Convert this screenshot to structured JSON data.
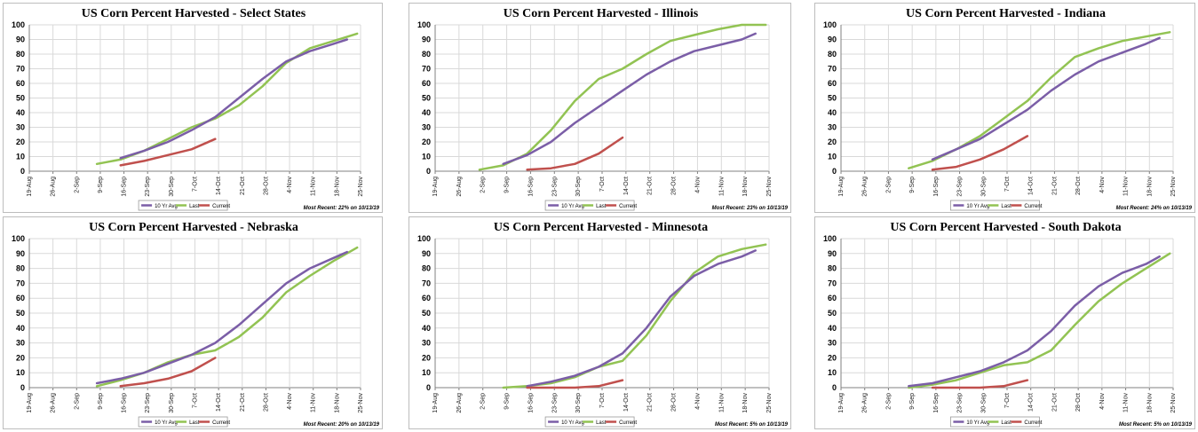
{
  "colors": {
    "avg": "#7b5ea7",
    "last": "#92c353",
    "current": "#c0504d",
    "grid": "#d9d9d9",
    "axis": "#808080"
  },
  "x_ticks": [
    "19-Aug",
    "26-Aug",
    "2-Sep",
    "9-Sep",
    "16-Sep",
    "23-Sep",
    "30-Sep",
    "7-Oct",
    "14-Oct",
    "21-Oct",
    "28-Oct",
    "4-Nov",
    "11-Nov",
    "18-Nov",
    "25-Nov"
  ],
  "y_ticks": [
    "0",
    "10",
    "20",
    "30",
    "40",
    "50",
    "60",
    "70",
    "80",
    "90",
    "100"
  ],
  "legend": {
    "avg": "10 Yr Avg",
    "last": "Last",
    "current": "Current"
  },
  "chart_data": [
    {
      "type": "line",
      "title": "US Corn Percent Harvested - Select States",
      "note": "Most Recent: 22% on 10/13/19",
      "ylim": [
        0,
        100
      ],
      "series": [
        {
          "name": "10 Yr Avg",
          "x": [
            "2019-09-15",
            "2019-09-22",
            "2019-09-29",
            "2019-10-06",
            "2019-10-13",
            "2019-10-20",
            "2019-10-27",
            "2019-11-03",
            "2019-11-10",
            "2019-11-17",
            "2019-11-21"
          ],
          "y": [
            9,
            14,
            20,
            28,
            37,
            50,
            63,
            75,
            82,
            87,
            90
          ]
        },
        {
          "name": "Last",
          "x": [
            "2019-09-08",
            "2019-09-15",
            "2019-09-22",
            "2019-09-29",
            "2019-10-06",
            "2019-10-13",
            "2019-10-20",
            "2019-10-27",
            "2019-11-03",
            "2019-11-10",
            "2019-11-17",
            "2019-11-24"
          ],
          "y": [
            5,
            8,
            14,
            22,
            30,
            36,
            45,
            58,
            74,
            84,
            89,
            94
          ]
        },
        {
          "name": "Current",
          "x": [
            "2019-09-15",
            "2019-09-22",
            "2019-09-29",
            "2019-10-06",
            "2019-10-13"
          ],
          "y": [
            4,
            7,
            11,
            15,
            22
          ]
        }
      ]
    },
    {
      "type": "line",
      "title": "US Corn Percent Harvested - Illinois",
      "note": "Most Recent: 23% on 10/13/19",
      "ylim": [
        0,
        100
      ],
      "series": [
        {
          "name": "10 Yr Avg",
          "x": [
            "2019-09-08",
            "2019-09-15",
            "2019-09-22",
            "2019-09-29",
            "2019-10-06",
            "2019-10-13",
            "2019-10-20",
            "2019-10-27",
            "2019-11-03",
            "2019-11-10",
            "2019-11-17",
            "2019-11-21"
          ],
          "y": [
            5,
            11,
            20,
            33,
            44,
            55,
            66,
            75,
            82,
            86,
            90,
            94
          ]
        },
        {
          "name": "Last",
          "x": [
            "2019-09-01",
            "2019-09-08",
            "2019-09-15",
            "2019-09-22",
            "2019-09-29",
            "2019-10-06",
            "2019-10-13",
            "2019-10-20",
            "2019-10-27",
            "2019-11-03",
            "2019-11-10",
            "2019-11-17",
            "2019-11-24"
          ],
          "y": [
            1,
            4,
            12,
            28,
            48,
            63,
            70,
            80,
            89,
            93,
            97,
            100,
            100
          ]
        },
        {
          "name": "Current",
          "x": [
            "2019-09-15",
            "2019-09-22",
            "2019-09-29",
            "2019-10-06",
            "2019-10-13"
          ],
          "y": [
            1,
            2,
            5,
            12,
            23
          ]
        }
      ]
    },
    {
      "type": "line",
      "title": "US Corn Percent Harvested - Indiana",
      "note": "Most Recent: 24% on 10/13/19",
      "ylim": [
        0,
        100
      ],
      "series": [
        {
          "name": "10 Yr Avg",
          "x": [
            "2019-09-15",
            "2019-09-22",
            "2019-09-29",
            "2019-10-06",
            "2019-10-13",
            "2019-10-20",
            "2019-10-27",
            "2019-11-03",
            "2019-11-10",
            "2019-11-17",
            "2019-11-21"
          ],
          "y": [
            8,
            15,
            22,
            32,
            42,
            55,
            66,
            75,
            81,
            87,
            91
          ]
        },
        {
          "name": "Last",
          "x": [
            "2019-09-08",
            "2019-09-15",
            "2019-09-22",
            "2019-09-29",
            "2019-10-06",
            "2019-10-13",
            "2019-10-20",
            "2019-10-27",
            "2019-11-03",
            "2019-11-10",
            "2019-11-17",
            "2019-11-24"
          ],
          "y": [
            2,
            7,
            15,
            24,
            36,
            48,
            64,
            78,
            84,
            89,
            92,
            95
          ]
        },
        {
          "name": "Current",
          "x": [
            "2019-09-15",
            "2019-09-22",
            "2019-09-29",
            "2019-10-06",
            "2019-10-13"
          ],
          "y": [
            1,
            3,
            8,
            15,
            24
          ]
        }
      ]
    },
    {
      "type": "line",
      "title": "US Corn Percent Harvested - Nebraska",
      "note": "Most Recent: 20% on 10/13/19",
      "ylim": [
        0,
        100
      ],
      "series": [
        {
          "name": "10 Yr Avg",
          "x": [
            "2019-09-08",
            "2019-09-15",
            "2019-09-22",
            "2019-09-29",
            "2019-10-06",
            "2019-10-13",
            "2019-10-20",
            "2019-10-27",
            "2019-11-03",
            "2019-11-10",
            "2019-11-17",
            "2019-11-21"
          ],
          "y": [
            3,
            6,
            10,
            16,
            22,
            30,
            42,
            56,
            70,
            80,
            87,
            91
          ]
        },
        {
          "name": "Last",
          "x": [
            "2019-09-08",
            "2019-09-15",
            "2019-09-22",
            "2019-09-29",
            "2019-10-06",
            "2019-10-13",
            "2019-10-20",
            "2019-10-27",
            "2019-11-03",
            "2019-11-10",
            "2019-11-17",
            "2019-11-24"
          ],
          "y": [
            1,
            5,
            10,
            17,
            22,
            25,
            34,
            47,
            64,
            75,
            85,
            94
          ]
        },
        {
          "name": "Current",
          "x": [
            "2019-09-15",
            "2019-09-22",
            "2019-09-29",
            "2019-10-06",
            "2019-10-13"
          ],
          "y": [
            1,
            3,
            6,
            11,
            20
          ]
        }
      ]
    },
    {
      "type": "line",
      "title": "US Corn Percent Harvested - Minnesota",
      "note": "Most Recent: 5% on 10/13/19",
      "ylim": [
        0,
        100
      ],
      "series": [
        {
          "name": "10 Yr Avg",
          "x": [
            "2019-09-15",
            "2019-09-22",
            "2019-09-29",
            "2019-10-06",
            "2019-10-13",
            "2019-10-20",
            "2019-10-27",
            "2019-11-03",
            "2019-11-10",
            "2019-11-17",
            "2019-11-21"
          ],
          "y": [
            1,
            4,
            8,
            14,
            23,
            40,
            61,
            75,
            83,
            88,
            92
          ]
        },
        {
          "name": "Last",
          "x": [
            "2019-09-08",
            "2019-09-15",
            "2019-09-22",
            "2019-09-29",
            "2019-10-06",
            "2019-10-13",
            "2019-10-20",
            "2019-10-27",
            "2019-11-03",
            "2019-11-10",
            "2019-11-17",
            "2019-11-24"
          ],
          "y": [
            0,
            1,
            3,
            7,
            14,
            18,
            35,
            58,
            77,
            88,
            93,
            96
          ]
        },
        {
          "name": "Current",
          "x": [
            "2019-09-15",
            "2019-09-22",
            "2019-09-29",
            "2019-10-06",
            "2019-10-13"
          ],
          "y": [
            0,
            0,
            0,
            1,
            5
          ]
        }
      ]
    },
    {
      "type": "line",
      "title": "US Corn Percent Harvested - South Dakota",
      "note": "Most Recent: 5% on 10/13/19",
      "ylim": [
        0,
        100
      ],
      "series": [
        {
          "name": "10 Yr Avg",
          "x": [
            "2019-09-08",
            "2019-09-15",
            "2019-09-22",
            "2019-09-29",
            "2019-10-06",
            "2019-10-13",
            "2019-10-20",
            "2019-10-27",
            "2019-11-03",
            "2019-11-10",
            "2019-11-17",
            "2019-11-21"
          ],
          "y": [
            1,
            3,
            7,
            11,
            17,
            25,
            38,
            55,
            68,
            77,
            83,
            88
          ]
        },
        {
          "name": "Last",
          "x": [
            "2019-09-08",
            "2019-09-15",
            "2019-09-22",
            "2019-09-29",
            "2019-10-06",
            "2019-10-13",
            "2019-10-20",
            "2019-10-27",
            "2019-11-03",
            "2019-11-10",
            "2019-11-17",
            "2019-11-24"
          ],
          "y": [
            0,
            2,
            5,
            10,
            15,
            17,
            25,
            42,
            58,
            70,
            80,
            90
          ]
        },
        {
          "name": "Current",
          "x": [
            "2019-09-15",
            "2019-09-22",
            "2019-09-29",
            "2019-10-06",
            "2019-10-13"
          ],
          "y": [
            0,
            0,
            0,
            1,
            5
          ]
        }
      ]
    }
  ]
}
